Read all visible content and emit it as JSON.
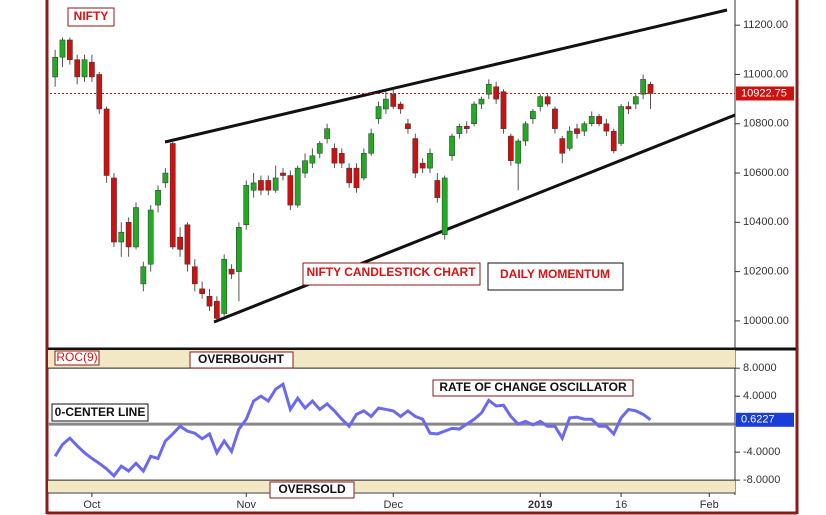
{
  "chart_data": [
    {
      "type": "candlestick",
      "title": "NIFTY",
      "annotations": [
        "NIFTY CANDLESTICK CHART",
        "DAILY MOMENTUM"
      ],
      "up_color": "#22aa22",
      "down_color": "#cc1111",
      "open": [
        10990,
        11070,
        11140,
        11060,
        10990,
        11050,
        11000,
        10860,
        10580,
        10320,
        10400,
        10300,
        10150,
        10230,
        10470,
        10560,
        10720,
        10340,
        10390,
        10220,
        10130,
        10100,
        10080,
        10030,
        10210,
        10200,
        10390,
        10530,
        10570,
        10570,
        10530,
        10600,
        10590,
        10470,
        10600,
        10640,
        10680,
        10740,
        10700,
        10680,
        10620,
        10620,
        10580,
        10680,
        10820,
        10860,
        10920,
        10880,
        10800,
        10740,
        10640,
        10620,
        10570,
        10350,
        10670,
        10760,
        10790,
        10800,
        10880,
        10920,
        10950,
        10930,
        10750,
        10640,
        10730,
        10820,
        10870,
        10910,
        10860,
        10740,
        10700,
        10780,
        10770,
        10800,
        10830,
        10800,
        10770,
        10720,
        10870,
        10880,
        10920,
        10960
      ],
      "high": [
        11100,
        11150,
        11150,
        11080,
        11080,
        11080,
        11010,
        10870,
        10600,
        10400,
        10420,
        10480,
        10240,
        10470,
        10550,
        10620,
        10730,
        10380,
        10400,
        10250,
        10160,
        10130,
        10100,
        10270,
        10230,
        10400,
        10570,
        10600,
        10590,
        10590,
        10630,
        10620,
        10610,
        10630,
        10680,
        10700,
        10730,
        10800,
        10720,
        10700,
        10640,
        10640,
        10700,
        10780,
        10890,
        10930,
        10940,
        10890,
        10820,
        10760,
        10660,
        10700,
        10600,
        10590,
        10760,
        10800,
        10810,
        10890,
        10910,
        10980,
        10970,
        10940,
        10760,
        10740,
        10810,
        10860,
        10920,
        10920,
        10870,
        10750,
        10790,
        10800,
        10810,
        10850,
        10840,
        10820,
        10780,
        10880,
        10890,
        10920,
        11000,
        10970
      ],
      "low": [
        10950,
        11030,
        11040,
        10960,
        10970,
        10970,
        10840,
        10560,
        10300,
        10260,
        10260,
        10290,
        10120,
        10200,
        10440,
        10540,
        10290,
        10260,
        10200,
        10120,
        10090,
        10040,
        10005,
        10020,
        10170,
        10080,
        10370,
        10500,
        10510,
        10510,
        10520,
        10570,
        10450,
        10460,
        10580,
        10620,
        10660,
        10720,
        10620,
        10620,
        10540,
        10520,
        10570,
        10670,
        10800,
        10840,
        10860,
        10840,
        10760,
        10580,
        10600,
        10600,
        10480,
        10330,
        10650,
        10740,
        10760,
        10790,
        10860,
        10900,
        10880,
        10760,
        10630,
        10530,
        10710,
        10800,
        10850,
        10870,
        10760,
        10640,
        10690,
        10740,
        10750,
        10790,
        10790,
        10750,
        10680,
        10710,
        10840,
        10860,
        10900,
        10860
      ],
      "close": [
        11070,
        11140,
        11060,
        10990,
        11060,
        10990,
        10860,
        10590,
        10320,
        10360,
        10300,
        10460,
        10220,
        10450,
        10530,
        10600,
        10300,
        10290,
        10230,
        10150,
        10110,
        10060,
        10010,
        10250,
        10190,
        10380,
        10550,
        10560,
        10530,
        10530,
        10580,
        10590,
        10470,
        10620,
        10650,
        10670,
        10720,
        10780,
        10640,
        10640,
        10560,
        10540,
        10680,
        10760,
        10870,
        10900,
        10870,
        10860,
        10780,
        10600,
        10620,
        10680,
        10500,
        10580,
        10750,
        10790,
        10780,
        10880,
        10900,
        10960,
        10900,
        10780,
        10650,
        10730,
        10800,
        10850,
        10910,
        10880,
        10780,
        10680,
        10770,
        10760,
        10800,
        10830,
        10800,
        10770,
        10690,
        10870,
        10860,
        10910,
        10980,
        10922.75
      ],
      "ylim": [
        9890,
        11290
      ],
      "yticks": [
        {
          "value": 10000,
          "label": "10000.00"
        },
        {
          "value": 10200,
          "label": "10200.00"
        },
        {
          "value": 10400,
          "label": "10400.00"
        },
        {
          "value": 10600,
          "label": "10600.00"
        },
        {
          "value": 10800,
          "label": "10800.00"
        },
        {
          "value": 11000,
          "label": "11000.00"
        },
        {
          "value": 11200,
          "label": "11200.00"
        }
      ]
    },
    {
      "type": "line",
      "title": "ROC(9)",
      "color": "#6a6af0",
      "annotations": [
        "OVERBOUGHT",
        "RATE OF CHANGE OSCILLATOR",
        "0-CENTER LINE",
        "OVERSOLD"
      ],
      "categories": [
        null,
        null,
        null,
        null,
        null,
        "Oct",
        null,
        null,
        null,
        null,
        null,
        null,
        null,
        null,
        null,
        null,
        null,
        null,
        null,
        null,
        null,
        null,
        null,
        null,
        null,
        null,
        "Nov",
        null,
        null,
        null,
        null,
        null,
        null,
        null,
        null,
        null,
        null,
        null,
        null,
        null,
        null,
        null,
        null,
        null,
        null,
        null,
        "Dec",
        null,
        null,
        null,
        null,
        null,
        null,
        null,
        null,
        null,
        null,
        null,
        null,
        null,
        null,
        null,
        null,
        null,
        null,
        null,
        "2019",
        null,
        null,
        null,
        null,
        null,
        null,
        null,
        null,
        null,
        null,
        "16",
        null,
        null,
        null,
        null,
        null,
        null,
        null,
        null,
        null,
        null,
        null,
        "Feb"
      ],
      "values": [
        -4.6,
        -2.9,
        -2.0,
        -3.1,
        -4.1,
        -4.9,
        -5.6,
        -6.4,
        -7.4,
        -6.0,
        -6.7,
        -5.6,
        -6.7,
        -4.6,
        -4.9,
        -2.4,
        -1.4,
        -0.3,
        -1.0,
        -1.3,
        -2.1,
        -1.4,
        -4.1,
        -2.4,
        -3.9,
        -0.7,
        0.7,
        3.3,
        4.0,
        3.3,
        5.0,
        5.7,
        2.1,
        3.7,
        2.3,
        3.3,
        2.1,
        2.9,
        1.9,
        0.7,
        -0.3,
        1.4,
        1.9,
        1.1,
        2.3,
        2.1,
        1.9,
        1.1,
        1.9,
        1.1,
        0.7,
        -1.3,
        -1.4,
        -1.0,
        -0.6,
        -0.7,
        0.0,
        0.7,
        1.6,
        3.4,
        2.6,
        2.7,
        1.1,
        0.0,
        0.4,
        -0.1,
        0.4,
        -0.3,
        -0.3,
        -2.0,
        0.9,
        1.0,
        0.7,
        0.7,
        -0.3,
        -0.3,
        -1.4,
        0.9,
        2.1,
        1.9,
        1.4,
        0.6227,
        null,
        null,
        null,
        null,
        null,
        null,
        null,
        null
      ],
      "ylim": [
        -9.7,
        10.6
      ],
      "yticks": [
        {
          "value": -8,
          "label": "-8.0000"
        },
        {
          "value": -4,
          "label": "-4.0000"
        },
        {
          "value": 0,
          "label": ""
        },
        {
          "value": 4,
          "label": "4.0000"
        },
        {
          "value": 8,
          "label": "8.0000"
        }
      ]
    }
  ]
}
